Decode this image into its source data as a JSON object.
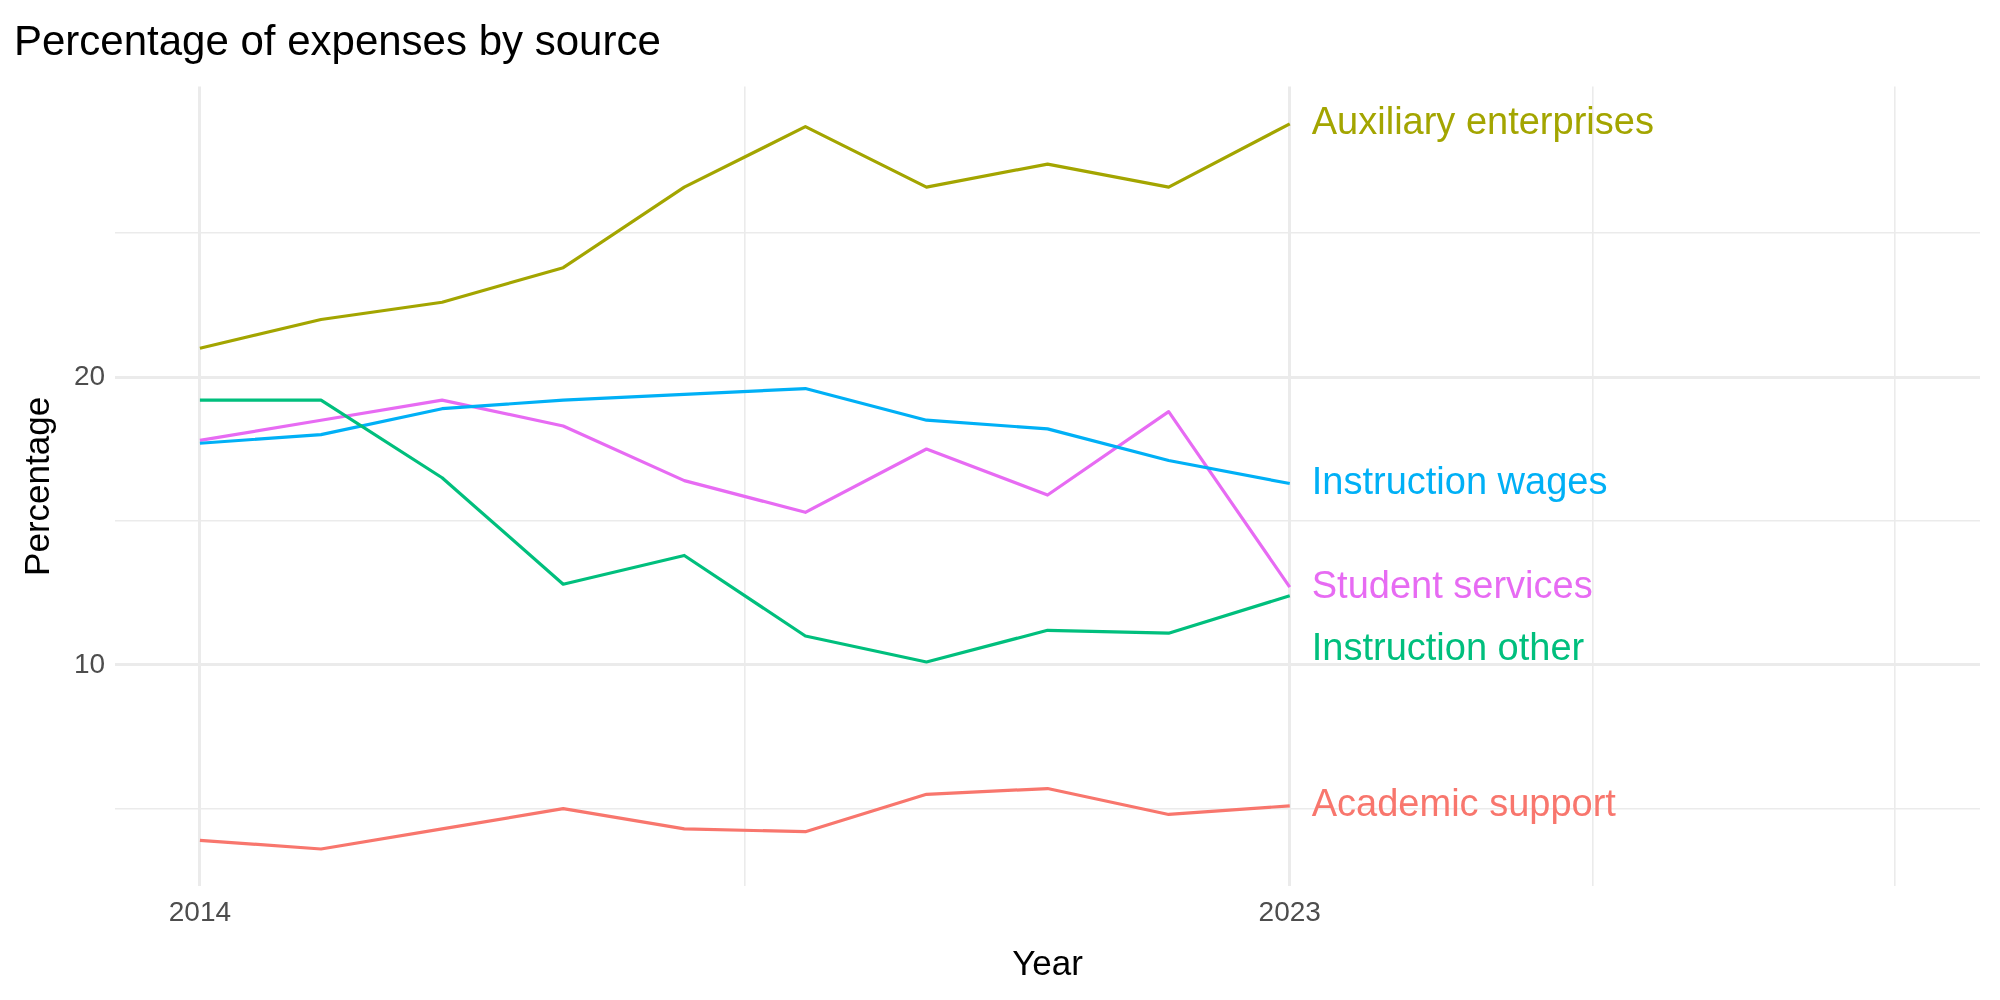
{
  "chart_data": {
    "type": "line",
    "title": "Percentage of expenses by source",
    "xlabel": "Year",
    "ylabel": "Percentage",
    "x": [
      2014,
      2015,
      2016,
      2017,
      2018,
      2019,
      2020,
      2021,
      2022,
      2023
    ],
    "series": [
      {
        "name": "Academic support",
        "color": "#f8766d",
        "values": [
          3.9,
          3.6,
          4.3,
          5.0,
          4.3,
          4.2,
          5.5,
          5.7,
          4.8,
          5.1
        ]
      },
      {
        "name": "Auxiliary enterprises",
        "color": "#a3a500",
        "values": [
          21.0,
          22.0,
          22.6,
          23.8,
          26.6,
          28.7,
          26.6,
          27.4,
          26.6,
          28.8
        ]
      },
      {
        "name": "Instruction other",
        "color": "#00bf7d",
        "values": [
          19.2,
          19.2,
          16.5,
          12.8,
          13.8,
          11.0,
          10.1,
          11.2,
          11.1,
          12.4
        ]
      },
      {
        "name": "Instruction wages",
        "color": "#00b0f6",
        "values": [
          17.7,
          18.0,
          18.9,
          19.2,
          19.4,
          19.6,
          18.5,
          18.2,
          17.1,
          16.3
        ]
      },
      {
        "name": "Student services",
        "color": "#e76bf3",
        "values": [
          17.8,
          18.5,
          19.2,
          18.3,
          16.4,
          15.3,
          17.5,
          15.9,
          18.8,
          12.7
        ]
      }
    ],
    "xlim": [
      2013.3,
      2028.7
    ],
    "xticks": [
      2014,
      {
        "value": 2018.5,
        "label": null
      },
      2023,
      {
        "value": 2025.5,
        "label": null
      },
      {
        "value": 2028,
        "label": null
      }
    ],
    "ylim": [
      2.3,
      30.1
    ],
    "yticks": [
      {
        "value": 5,
        "label": null
      },
      10,
      {
        "value": 15,
        "label": null
      },
      20,
      {
        "value": 25,
        "label": null
      }
    ],
    "grid": true,
    "legend": false,
    "marker": "none",
    "line_style": "solid"
  }
}
